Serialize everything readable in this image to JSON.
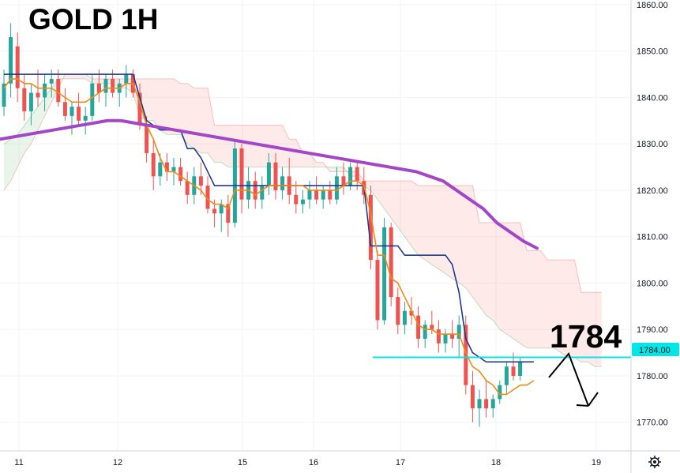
{
  "chart_data": {
    "type": "candlestick",
    "title": "GOLD 1H",
    "xlabel": "",
    "ylabel": "",
    "ylim": [
      1764,
      1861
    ],
    "y_ticks": [
      "1770.00",
      "1780.00",
      "1790.00",
      "1800.00",
      "1810.00",
      "1820.00",
      "1830.00",
      "1840.00",
      "1850.00",
      "1860.00"
    ],
    "x_ticks": [
      "11",
      "12",
      "15",
      "16",
      "17",
      "18",
      "19"
    ],
    "grid": true,
    "level": {
      "value": 1784,
      "label": "1784",
      "price_tag": "1784.00",
      "color": "#00e5e5"
    },
    "candles": [
      {
        "o": 1838,
        "h": 1846,
        "l": 1836,
        "c": 1843
      },
      {
        "o": 1843,
        "h": 1856,
        "l": 1840,
        "c": 1853
      },
      {
        "o": 1851,
        "h": 1854,
        "l": 1839,
        "c": 1842
      },
      {
        "o": 1842,
        "h": 1845,
        "l": 1835,
        "c": 1837
      },
      {
        "o": 1837,
        "h": 1843,
        "l": 1834,
        "c": 1841
      },
      {
        "o": 1841,
        "h": 1846,
        "l": 1838,
        "c": 1840
      },
      {
        "o": 1840,
        "h": 1845,
        "l": 1837,
        "c": 1843
      },
      {
        "o": 1843,
        "h": 1846,
        "l": 1840,
        "c": 1844
      },
      {
        "o": 1844,
        "h": 1846,
        "l": 1838,
        "c": 1839
      },
      {
        "o": 1839,
        "h": 1842,
        "l": 1835,
        "c": 1836
      },
      {
        "o": 1836,
        "h": 1839,
        "l": 1832,
        "c": 1838
      },
      {
        "o": 1838,
        "h": 1841,
        "l": 1834,
        "c": 1835
      },
      {
        "o": 1835,
        "h": 1838,
        "l": 1832,
        "c": 1836
      },
      {
        "o": 1836,
        "h": 1845,
        "l": 1835,
        "c": 1843
      },
      {
        "o": 1843,
        "h": 1846,
        "l": 1839,
        "c": 1841
      },
      {
        "o": 1841,
        "h": 1845,
        "l": 1838,
        "c": 1844
      },
      {
        "o": 1844,
        "h": 1846,
        "l": 1840,
        "c": 1841
      },
      {
        "o": 1841,
        "h": 1844,
        "l": 1838,
        "c": 1843
      },
      {
        "o": 1843,
        "h": 1847,
        "l": 1840,
        "c": 1845
      },
      {
        "o": 1845,
        "h": 1846,
        "l": 1840,
        "c": 1841
      },
      {
        "o": 1841,
        "h": 1843,
        "l": 1833,
        "c": 1834
      },
      {
        "o": 1834,
        "h": 1836,
        "l": 1826,
        "c": 1828
      },
      {
        "o": 1828,
        "h": 1831,
        "l": 1820,
        "c": 1823
      },
      {
        "o": 1823,
        "h": 1828,
        "l": 1821,
        "c": 1826
      },
      {
        "o": 1826,
        "h": 1828,
        "l": 1822,
        "c": 1824
      },
      {
        "o": 1824,
        "h": 1827,
        "l": 1821,
        "c": 1825
      },
      {
        "o": 1825,
        "h": 1827,
        "l": 1821,
        "c": 1822
      },
      {
        "o": 1822,
        "h": 1824,
        "l": 1817,
        "c": 1819
      },
      {
        "o": 1819,
        "h": 1825,
        "l": 1817,
        "c": 1823
      },
      {
        "o": 1823,
        "h": 1826,
        "l": 1819,
        "c": 1821
      },
      {
        "o": 1821,
        "h": 1823,
        "l": 1815,
        "c": 1816
      },
      {
        "o": 1816,
        "h": 1818,
        "l": 1812,
        "c": 1815
      },
      {
        "o": 1815,
        "h": 1818,
        "l": 1811,
        "c": 1817
      },
      {
        "o": 1817,
        "h": 1819,
        "l": 1810,
        "c": 1813
      },
      {
        "o": 1813,
        "h": 1831,
        "l": 1812,
        "c": 1829
      },
      {
        "o": 1829,
        "h": 1830,
        "l": 1815,
        "c": 1818
      },
      {
        "o": 1818,
        "h": 1825,
        "l": 1816,
        "c": 1822
      },
      {
        "o": 1822,
        "h": 1824,
        "l": 1816,
        "c": 1818
      },
      {
        "o": 1818,
        "h": 1823,
        "l": 1816,
        "c": 1821
      },
      {
        "o": 1821,
        "h": 1828,
        "l": 1819,
        "c": 1826
      },
      {
        "o": 1826,
        "h": 1828,
        "l": 1818,
        "c": 1820
      },
      {
        "o": 1820,
        "h": 1825,
        "l": 1818,
        "c": 1823
      },
      {
        "o": 1823,
        "h": 1827,
        "l": 1817,
        "c": 1819
      },
      {
        "o": 1819,
        "h": 1822,
        "l": 1815,
        "c": 1817
      },
      {
        "o": 1817,
        "h": 1820,
        "l": 1815,
        "c": 1818
      },
      {
        "o": 1818,
        "h": 1822,
        "l": 1816,
        "c": 1820
      },
      {
        "o": 1820,
        "h": 1823,
        "l": 1817,
        "c": 1818
      },
      {
        "o": 1818,
        "h": 1821,
        "l": 1816,
        "c": 1820
      },
      {
        "o": 1820,
        "h": 1822,
        "l": 1817,
        "c": 1818
      },
      {
        "o": 1818,
        "h": 1825,
        "l": 1817,
        "c": 1823
      },
      {
        "o": 1823,
        "h": 1826,
        "l": 1819,
        "c": 1821
      },
      {
        "o": 1821,
        "h": 1826,
        "l": 1820,
        "c": 1825
      },
      {
        "o": 1825,
        "h": 1826,
        "l": 1820,
        "c": 1822
      },
      {
        "o": 1822,
        "h": 1825,
        "l": 1817,
        "c": 1819
      },
      {
        "o": 1819,
        "h": 1821,
        "l": 1803,
        "c": 1805
      },
      {
        "o": 1805,
        "h": 1807,
        "l": 1790,
        "c": 1792
      },
      {
        "o": 1792,
        "h": 1814,
        "l": 1791,
        "c": 1812
      },
      {
        "o": 1812,
        "h": 1813,
        "l": 1795,
        "c": 1797
      },
      {
        "o": 1797,
        "h": 1799,
        "l": 1789,
        "c": 1791
      },
      {
        "o": 1791,
        "h": 1796,
        "l": 1789,
        "c": 1794
      },
      {
        "o": 1794,
        "h": 1797,
        "l": 1791,
        "c": 1793
      },
      {
        "o": 1793,
        "h": 1795,
        "l": 1786,
        "c": 1788
      },
      {
        "o": 1788,
        "h": 1792,
        "l": 1786,
        "c": 1791
      },
      {
        "o": 1791,
        "h": 1794,
        "l": 1789,
        "c": 1790
      },
      {
        "o": 1790,
        "h": 1792,
        "l": 1785,
        "c": 1787
      },
      {
        "o": 1787,
        "h": 1790,
        "l": 1785,
        "c": 1789
      },
      {
        "o": 1789,
        "h": 1792,
        "l": 1786,
        "c": 1788
      },
      {
        "o": 1788,
        "h": 1793,
        "l": 1784,
        "c": 1791
      },
      {
        "o": 1791,
        "h": 1793,
        "l": 1776,
        "c": 1778
      },
      {
        "o": 1778,
        "h": 1781,
        "l": 1770,
        "c": 1773
      },
      {
        "o": 1773,
        "h": 1777,
        "l": 1769,
        "c": 1775
      },
      {
        "o": 1775,
        "h": 1779,
        "l": 1771,
        "c": 1773
      },
      {
        "o": 1773,
        "h": 1776,
        "l": 1771,
        "c": 1775
      },
      {
        "o": 1775,
        "h": 1779,
        "l": 1774,
        "c": 1778
      },
      {
        "o": 1778,
        "h": 1783,
        "l": 1776,
        "c": 1782
      },
      {
        "o": 1782,
        "h": 1785,
        "l": 1779,
        "c": 1780
      },
      {
        "o": 1780,
        "h": 1784,
        "l": 1779,
        "c": 1783
      }
    ],
    "baseline": [
      1845,
      1845,
      1845,
      1845,
      1845,
      1845,
      1845,
      1845,
      1845,
      1845,
      1845,
      1845,
      1845,
      1845,
      1845,
      1845,
      1845,
      1845,
      1845,
      1845,
      1840,
      1835,
      1834,
      1833,
      1833,
      1833,
      1833,
      1829,
      1829,
      1827,
      1824,
      1821,
      1821,
      1821,
      1821,
      1821,
      1821,
      1821,
      1821,
      1821,
      1821,
      1821,
      1821,
      1821,
      1821,
      1821,
      1821,
      1821,
      1821,
      1821,
      1821,
      1821,
      1821,
      1821,
      1808,
      1808,
      1808,
      1808,
      1808,
      1806,
      1806,
      1806,
      1806,
      1806,
      1806,
      1806,
      1804,
      1798,
      1788,
      1785,
      1784,
      1783,
      1783,
      1783,
      1783,
      1783,
      1783,
      1783,
      1783
    ],
    "conversion": [
      1842,
      1844,
      1844,
      1843,
      1843,
      1842,
      1842,
      1842,
      1841,
      1840,
      1839,
      1839,
      1839,
      1840,
      1841,
      1842,
      1842,
      1842,
      1843,
      1843,
      1839,
      1834,
      1831,
      1827,
      1824,
      1824,
      1823,
      1822,
      1821,
      1820,
      1818,
      1817,
      1817,
      1816,
      1820,
      1820,
      1820,
      1819,
      1820,
      1821,
      1821,
      1821,
      1821,
      1821,
      1821,
      1820,
      1820,
      1820,
      1820,
      1820,
      1821,
      1822,
      1822,
      1821,
      1815,
      1806,
      1806,
      1801,
      1800,
      1797,
      1794,
      1791,
      1790,
      1790,
      1789,
      1789,
      1789,
      1789,
      1785,
      1782,
      1781,
      1779,
      1778,
      1776,
      1776,
      1777,
      1778,
      1778,
      1779
    ],
    "ma": [
      1831,
      1831.5,
      1832,
      1832.5,
      1833,
      1833.5,
      1834,
      1834.5,
      1835,
      1835,
      1834.5,
      1834,
      1833.5,
      1833,
      1832.5,
      1832,
      1831.5,
      1831,
      1830.5,
      1830,
      1829.5,
      1829,
      1828.5,
      1828,
      1827.5,
      1827,
      1826.5,
      1826,
      1825.5,
      1825,
      1824.5,
      1824,
      1823,
      1822,
      1820,
      1818,
      1816,
      1813,
      1811,
      1809,
      1807.5
    ],
    "cloud": {
      "span_a": [
        1830,
        1831,
        1832,
        1834,
        1836,
        1838,
        1840,
        1842,
        1844,
        1844,
        1844,
        1844,
        1844,
        1843,
        1843,
        1843,
        1843,
        1842,
        1842,
        1841,
        1836,
        1835,
        1835,
        1833,
        1832,
        1832,
        1832,
        1830,
        1829,
        1828,
        1828,
        1826,
        1826,
        1825,
        1825,
        1825,
        1825,
        1825,
        1825,
        1825,
        1825,
        1825,
        1825,
        1825,
        1825,
        1825,
        1825,
        1825,
        1825,
        1825,
        1825,
        1823,
        1823,
        1821,
        1820,
        1818,
        1816,
        1814,
        1812,
        1810,
        1808,
        1806,
        1805,
        1804,
        1803,
        1802,
        1801,
        1800,
        1799,
        1797,
        1795,
        1793,
        1792,
        1790,
        1789,
        1788,
        1787,
        1786,
        1786,
        1786,
        1786,
        1786,
        1785,
        1784,
        1784,
        1783,
        1783,
        1782,
        1782
      ],
      "span_b": [
        1820,
        1822,
        1825,
        1828,
        1830,
        1833,
        1836,
        1839,
        1842,
        1845,
        1845,
        1845,
        1845,
        1844,
        1844,
        1844,
        1844,
        1844,
        1844,
        1844,
        1844,
        1844,
        1844,
        1844,
        1844,
        1844,
        1843,
        1843,
        1842,
        1842,
        1842,
        1834,
        1834,
        1834,
        1834,
        1834,
        1834,
        1834,
        1834,
        1834,
        1834,
        1834,
        1831,
        1831,
        1828,
        1828,
        1826,
        1826,
        1824,
        1824,
        1824,
        1824,
        1824,
        1822,
        1822,
        1822,
        1822,
        1822,
        1822,
        1822,
        1822,
        1821,
        1821,
        1821,
        1821,
        1821,
        1821,
        1821,
        1821,
        1821,
        1813,
        1813,
        1813,
        1813,
        1813,
        1813,
        1813,
        1807,
        1807,
        1807,
        1805,
        1805,
        1805,
        1805,
        1805,
        1798,
        1798,
        1798,
        1798
      ]
    }
  }
}
